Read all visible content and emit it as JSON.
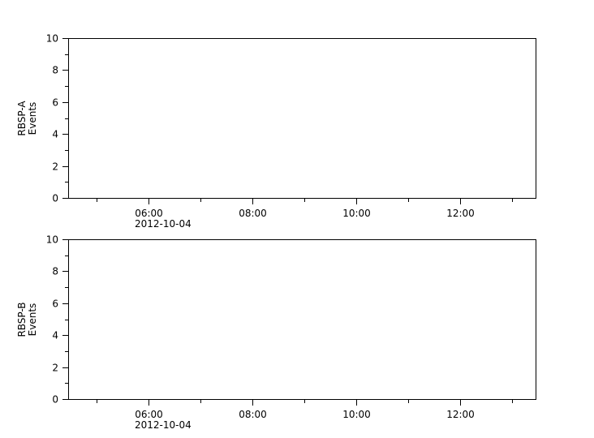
{
  "figure": {
    "background_color": "#ffffff",
    "axis_color": "#000000",
    "text_color": "#000000"
  },
  "chart_data": [
    {
      "type": "line",
      "id": "rbsp-a",
      "title": "",
      "ylabel_lines": [
        "RBSP-A",
        "Events"
      ],
      "ylabel": "RBSP-A Events",
      "xlabel": "",
      "ylim": [
        0,
        10
      ],
      "xlim_hours": [
        4.46,
        13.46
      ],
      "x_axis_date": "2012-10-04",
      "grid": false,
      "series": [],
      "y_major_ticks": [
        {
          "value": 10,
          "label": "10"
        },
        {
          "value": 8,
          "label": "8"
        },
        {
          "value": 6,
          "label": "6"
        },
        {
          "value": 4,
          "label": "4"
        },
        {
          "value": 2,
          "label": "2"
        },
        {
          "value": 0,
          "label": "0"
        }
      ],
      "y_minor_tick_values": [
        9,
        7,
        5,
        3,
        1
      ],
      "x_major_ticks": [
        {
          "hour": 6,
          "label": "06:00",
          "sublabel": "2012-10-04"
        },
        {
          "hour": 8,
          "label": "08:00",
          "sublabel": ""
        },
        {
          "hour": 10,
          "label": "10:00",
          "sublabel": ""
        },
        {
          "hour": 12,
          "label": "12:00",
          "sublabel": ""
        }
      ],
      "x_minor_tick_hours": [
        5,
        7,
        9,
        11,
        13
      ]
    },
    {
      "type": "line",
      "id": "rbsp-b",
      "title": "",
      "ylabel_lines": [
        "RBSP-B",
        "Events"
      ],
      "ylabel": "RBSP-B Events",
      "xlabel": "",
      "ylim": [
        0,
        10
      ],
      "xlim_hours": [
        4.46,
        13.46
      ],
      "x_axis_date": "2012-10-04",
      "grid": false,
      "series": [],
      "y_major_ticks": [
        {
          "value": 10,
          "label": "10"
        },
        {
          "value": 8,
          "label": "8"
        },
        {
          "value": 6,
          "label": "6"
        },
        {
          "value": 4,
          "label": "4"
        },
        {
          "value": 2,
          "label": "2"
        },
        {
          "value": 0,
          "label": "0"
        }
      ],
      "y_minor_tick_values": [
        9,
        7,
        5,
        3,
        1
      ],
      "x_major_ticks": [
        {
          "hour": 6,
          "label": "06:00",
          "sublabel": "2012-10-04"
        },
        {
          "hour": 8,
          "label": "08:00",
          "sublabel": ""
        },
        {
          "hour": 10,
          "label": "10:00",
          "sublabel": ""
        },
        {
          "hour": 12,
          "label": "12:00",
          "sublabel": ""
        }
      ],
      "x_minor_tick_hours": [
        5,
        7,
        9,
        11,
        13
      ]
    }
  ]
}
